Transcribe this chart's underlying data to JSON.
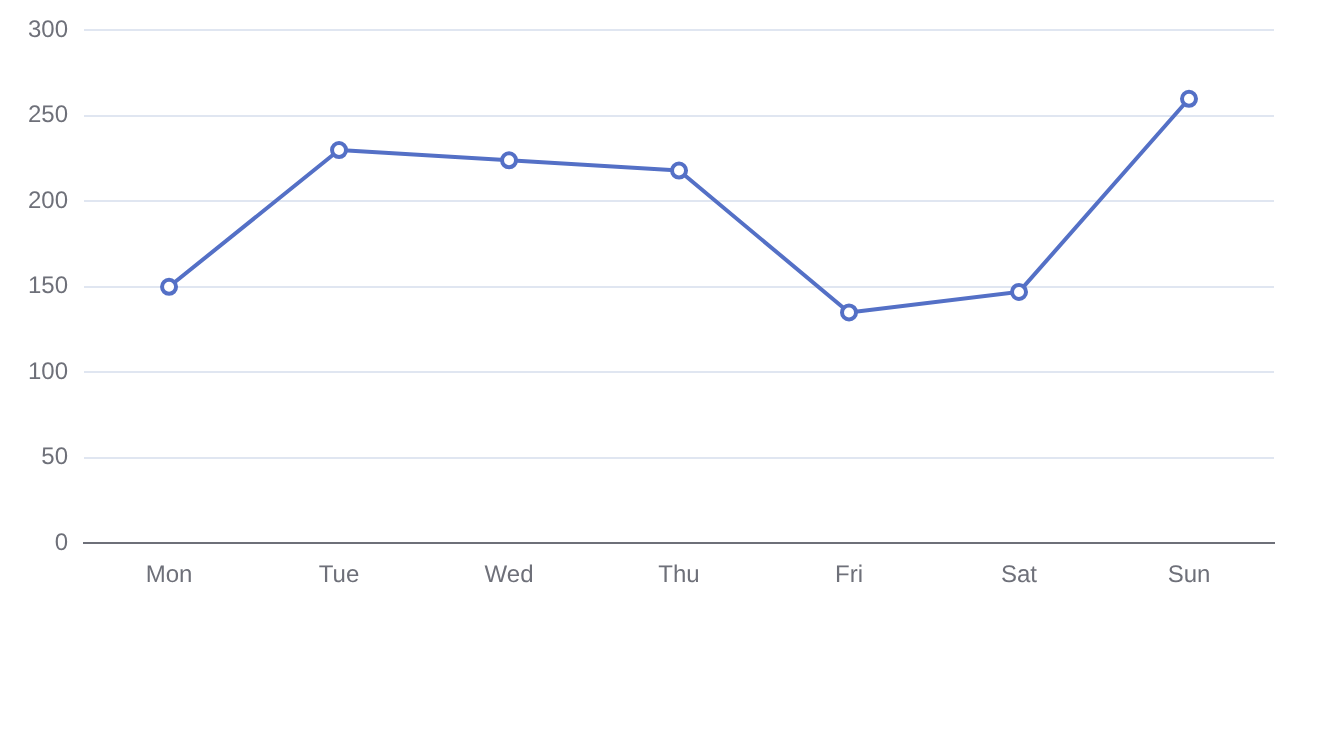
{
  "chart_data": {
    "type": "line",
    "categories": [
      "Mon",
      "Tue",
      "Wed",
      "Thu",
      "Fri",
      "Sat",
      "Sun"
    ],
    "series": [
      {
        "color": "#5470c6",
        "values": [
          150,
          230,
          224,
          218,
          135,
          147,
          260
        ]
      }
    ],
    "ylim": [
      0,
      300
    ],
    "yticks": [
      0,
      50,
      100,
      150,
      200,
      250,
      300
    ],
    "grid": "y",
    "legend": false,
    "marker": "circle",
    "line_style": "solid"
  }
}
